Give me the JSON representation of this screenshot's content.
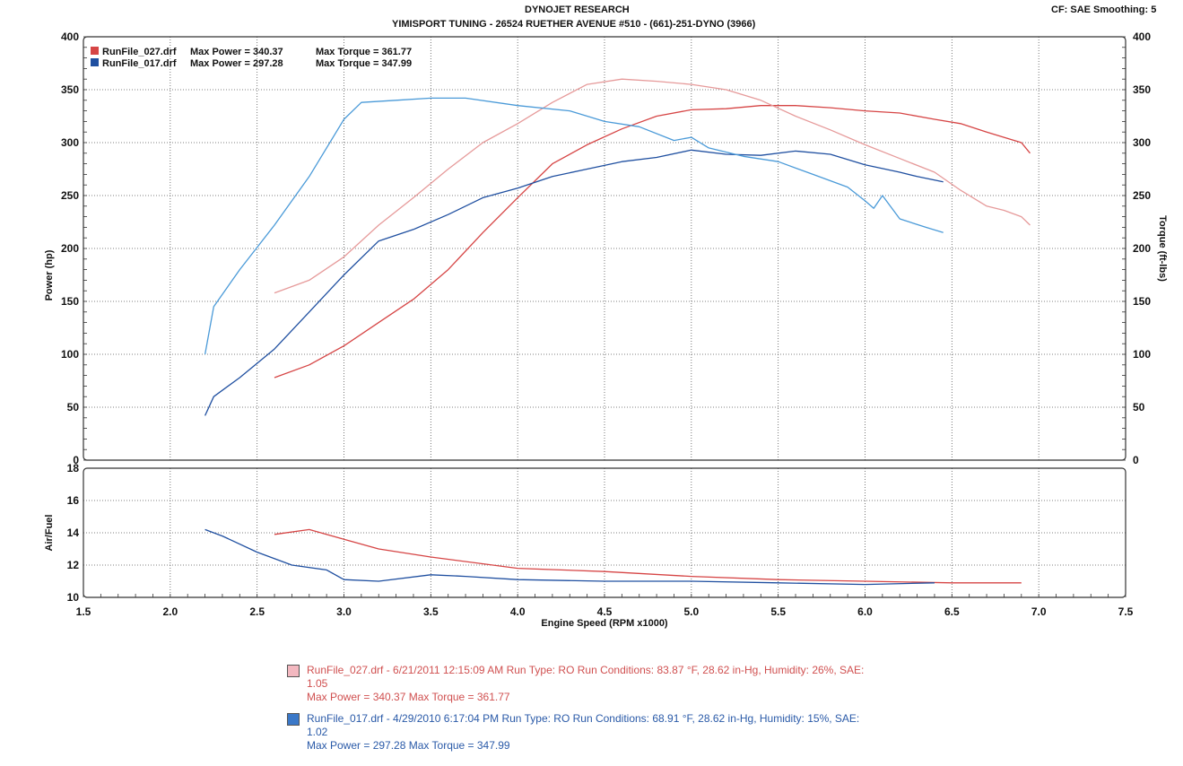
{
  "header": {
    "title": "DYNOJET RESEARCH",
    "subtitle": "YIMISPORT TUNING - 26524 RUETHER AVENUE #510 - (661)-251-DYNO (3966)",
    "settings": "CF: SAE  Smoothing: 5"
  },
  "legend": [
    {
      "file": "RunFile_027.drf",
      "power": "Max Power = 340.37",
      "torque": "Max Torque = 361.77",
      "color": "#d64545"
    },
    {
      "file": "RunFile_017.drf",
      "power": "Max Power = 297.28",
      "torque": "Max Torque = 347.99",
      "color": "#1f4fa0"
    }
  ],
  "footer": [
    {
      "line1": "RunFile_027.drf - 6/21/2011 12:15:09 AM  Run Type: RO  Run Conditions: 83.87 °F, 28.62 in-Hg,  Humidity:  26%, SAE:",
      "line2": "1.05",
      "line3": "Max Power = 340.37  Max Torque = 361.77"
    },
    {
      "line1": "RunFile_017.drf - 4/29/2010 6:17:04 PM  Run Type: RO  Run Conditions: 68.91 °F, 28.62 in-Hg,  Humidity:  15%, SAE:",
      "line2": "1.02",
      "line3": "Max Power = 297.28  Max Torque = 347.99"
    }
  ],
  "chart_data": [
    {
      "type": "line",
      "xlabel": "Engine Speed (RPM x1000)",
      "ylabel": "Power (hp)",
      "y2label": "Torque (ft-lbs)",
      "xlim": [
        1.5,
        7.5
      ],
      "ylim": [
        0,
        400
      ],
      "y2lim": [
        0,
        400
      ],
      "xticks": [
        "1.5",
        "2.0",
        "2.5",
        "3.0",
        "3.5",
        "4.0",
        "4.5",
        "5.0",
        "5.5",
        "6.0",
        "6.5",
        "7.0",
        "7.5"
      ],
      "yticks": [
        "0",
        "50",
        "100",
        "150",
        "200",
        "250",
        "300",
        "350",
        "400"
      ],
      "grid": true,
      "series": [
        {
          "name": "RunFile_027.drf",
          "color": "#d64545",
          "style": "solid",
          "x": [
            2.6,
            2.8,
            3.0,
            3.2,
            3.4,
            3.6,
            3.8,
            4.0,
            4.2,
            4.4,
            4.6,
            4.8,
            5.0,
            5.2,
            5.4,
            5.6,
            5.8,
            6.0,
            6.2,
            6.4,
            6.55,
            6.7,
            6.8,
            6.9,
            6.95
          ],
          "y": [
            78,
            90,
            108,
            130,
            152,
            180,
            215,
            248,
            280,
            298,
            313,
            325,
            331,
            332,
            335,
            335,
            333,
            330,
            328,
            322,
            318,
            310,
            305,
            300,
            290
          ]
        },
        {
          "name": "RunFile_027.drf",
          "color": "#e69a9a",
          "style": "solid",
          "x": [
            2.6,
            2.8,
            3.0,
            3.2,
            3.4,
            3.6,
            3.8,
            4.0,
            4.2,
            4.4,
            4.6,
            4.8,
            5.0,
            5.2,
            5.4,
            5.6,
            5.8,
            6.0,
            6.2,
            6.4,
            6.55,
            6.7,
            6.8,
            6.9,
            6.95
          ],
          "y": [
            158,
            170,
            192,
            222,
            248,
            275,
            300,
            318,
            338,
            355,
            360,
            358,
            355,
            350,
            340,
            325,
            312,
            298,
            285,
            272,
            255,
            240,
            236,
            230,
            222
          ]
        },
        {
          "name": "RunFile_017.drf",
          "color": "#1f4fa0",
          "style": "solid",
          "x": [
            2.2,
            2.25,
            2.4,
            2.6,
            2.8,
            3.0,
            3.2,
            3.4,
            3.6,
            3.8,
            4.0,
            4.2,
            4.4,
            4.6,
            4.8,
            5.0,
            5.2,
            5.4,
            5.6,
            5.8,
            6.0,
            6.2,
            6.3,
            6.45
          ],
          "y": [
            42,
            60,
            78,
            105,
            140,
            175,
            207,
            218,
            232,
            248,
            257,
            268,
            275,
            282,
            286,
            293,
            289,
            288,
            292,
            289,
            279,
            272,
            268,
            263
          ]
        },
        {
          "name": "RunFile_017.drf",
          "color": "#4a9ad8",
          "style": "solid",
          "x": [
            2.2,
            2.25,
            2.4,
            2.6,
            2.8,
            3.0,
            3.1,
            3.3,
            3.5,
            3.7,
            4.0,
            4.3,
            4.5,
            4.7,
            4.9,
            5.0,
            5.1,
            5.3,
            5.5,
            5.7,
            5.9,
            6.0,
            6.05,
            6.1,
            6.2,
            6.35,
            6.45
          ],
          "y": [
            100,
            145,
            180,
            222,
            268,
            322,
            338,
            340,
            342,
            342,
            335,
            330,
            320,
            315,
            302,
            305,
            295,
            287,
            282,
            270,
            258,
            245,
            238,
            250,
            228,
            220,
            215
          ]
        }
      ]
    },
    {
      "type": "line",
      "xlabel": "Engine Speed (RPM x1000)",
      "ylabel": "Air/Fuel",
      "xlim": [
        1.5,
        7.5
      ],
      "ylim": [
        10,
        18
      ],
      "yticks": [
        "10",
        "12",
        "14",
        "16",
        "18"
      ],
      "grid": true,
      "series": [
        {
          "name": "RunFile_027.drf",
          "color": "#d64545",
          "style": "solid",
          "x": [
            2.6,
            2.8,
            3.0,
            3.2,
            3.5,
            4.0,
            4.5,
            5.0,
            5.5,
            6.0,
            6.5,
            6.9
          ],
          "y": [
            13.9,
            14.2,
            13.6,
            13.0,
            12.5,
            11.8,
            11.6,
            11.3,
            11.1,
            11.0,
            10.9,
            10.9
          ]
        },
        {
          "name": "RunFile_017.drf",
          "color": "#1f4fa0",
          "style": "solid",
          "x": [
            2.2,
            2.3,
            2.5,
            2.7,
            2.9,
            3.0,
            3.2,
            3.5,
            3.7,
            4.0,
            4.5,
            5.0,
            5.5,
            6.0,
            6.4
          ],
          "y": [
            14.2,
            13.8,
            12.8,
            12.0,
            11.7,
            11.1,
            11.0,
            11.4,
            11.3,
            11.1,
            11.0,
            11.0,
            10.9,
            10.8,
            10.9
          ]
        }
      ]
    }
  ]
}
